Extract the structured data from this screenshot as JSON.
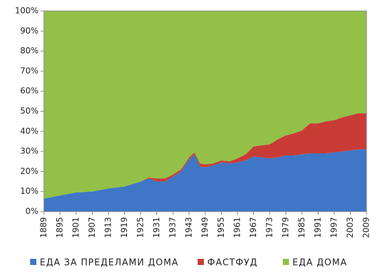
{
  "chart_data": {
    "type": "stacked-area",
    "x": [
      1889,
      1895,
      1901,
      1907,
      1913,
      1919,
      1925,
      1928,
      1931,
      1934,
      1937,
      1940,
      1943,
      1945,
      1947,
      1949,
      1952,
      1955,
      1958,
      1961,
      1964,
      1967,
      1970,
      1973,
      1976,
      1979,
      1982,
      1985,
      1988,
      1991,
      1994,
      1997,
      2000,
      2003,
      2006,
      2009
    ],
    "series": [
      {
        "name": "ЕДА ЗА ПРЕДЕЛАМИ ДОМА",
        "color": "#3f76c5",
        "values": [
          6.5,
          8,
          9.5,
          10,
          11.5,
          12.5,
          15,
          16.5,
          15,
          15,
          17.5,
          20,
          26,
          28.5,
          22.5,
          22,
          23,
          24.5,
          24,
          24.5,
          25.5,
          27.5,
          27,
          26.5,
          27,
          28,
          28,
          28.5,
          29,
          29,
          29,
          29.5,
          30,
          30.5,
          31,
          31
        ]
      },
      {
        "name": "ФАСТФУД",
        "color": "#c93c36",
        "values": [
          0,
          0,
          0,
          0,
          0,
          0,
          0,
          0.5,
          1.5,
          1.5,
          1,
          1,
          1,
          1,
          1.5,
          1.5,
          1,
          1,
          1,
          2,
          3,
          5,
          6,
          7,
          9,
          10,
          11,
          12,
          15,
          15,
          16,
          16,
          17,
          17.5,
          18,
          18
        ]
      },
      {
        "name": "ЕДА ДОМА",
        "color": "#93c047",
        "values": [
          93.5,
          92,
          90.5,
          90,
          88.5,
          87.5,
          85,
          83,
          83.5,
          83.5,
          81.5,
          79,
          73,
          70.5,
          76,
          76.5,
          76,
          74.5,
          75,
          73.5,
          71.5,
          67.5,
          67,
          66.5,
          64,
          62,
          61,
          59.5,
          56,
          56,
          55,
          54.5,
          53,
          52,
          51,
          51
        ]
      }
    ],
    "xlim": [
      1889,
      2009
    ],
    "xticks": [
      1889,
      1895,
      1901,
      1907,
      1913,
      1919,
      1925,
      1931,
      1937,
      1943,
      1949,
      1955,
      1961,
      1967,
      1973,
      1979,
      1985,
      1991,
      1997,
      2003,
      2009
    ],
    "ylim": [
      0,
      100
    ],
    "yticks": [
      {
        "value": 0,
        "label": "0%"
      },
      {
        "value": 10,
        "label": "10%"
      },
      {
        "value": 20,
        "label": "20%"
      },
      {
        "value": 30,
        "label": "30%"
      },
      {
        "value": 40,
        "label": "40%"
      },
      {
        "value": 50,
        "label": "50%"
      },
      {
        "value": 60,
        "label": "60%"
      },
      {
        "value": 70,
        "label": "70%"
      },
      {
        "value": 80,
        "label": "80%"
      },
      {
        "value": 90,
        "label": "90%"
      },
      {
        "value": 100,
        "label": "100%"
      }
    ]
  }
}
